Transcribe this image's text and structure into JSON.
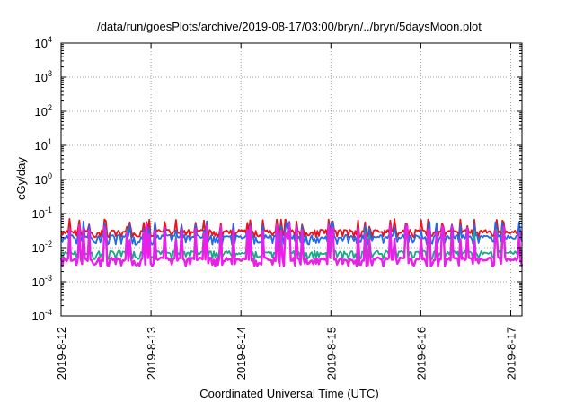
{
  "chart_data": {
    "type": "line",
    "title": "/data/run/goesPlots/archive/2019-08-17/03:00/bryn/../bryn/5daysMoon.plot",
    "ylabel": "cGy/day",
    "xlabel": "Coordinated Universal Time (UTC)",
    "yscale": "log",
    "ylim": [
      0.0001,
      10000
    ],
    "yticks": [
      {
        "base": "10",
        "exp": "4",
        "value": 10000
      },
      {
        "base": "10",
        "exp": "3",
        "value": 1000
      },
      {
        "base": "10",
        "exp": "2",
        "value": 100
      },
      {
        "base": "10",
        "exp": "1",
        "value": 10
      },
      {
        "base": "10",
        "exp": "0",
        "value": 1
      },
      {
        "base": "10",
        "exp": "-1",
        "value": 0.1
      },
      {
        "base": "10",
        "exp": "-2",
        "value": 0.01
      },
      {
        "base": "10",
        "exp": "-3",
        "value": 0.001
      },
      {
        "base": "10",
        "exp": "-4",
        "value": 0.0001
      }
    ],
    "xlim": [
      "2019-08-12 00:00",
      "2019-08-17 03:00"
    ],
    "xticks": [
      {
        "label": "2019-8-12",
        "value": "2019-08-12"
      },
      {
        "label": "2019-8-13",
        "value": "2019-08-13"
      },
      {
        "label": "2019-8-14",
        "value": "2019-08-14"
      },
      {
        "label": "2019-8-15",
        "value": "2019-08-15"
      },
      {
        "label": "2019-8-16",
        "value": "2019-08-16"
      },
      {
        "label": "2019-8-17",
        "value": "2019-08-17"
      }
    ],
    "grid": true,
    "series": [
      {
        "color": "#e8141c",
        "base": 0.03,
        "spike_low": 0.02,
        "spike_high": 0.07
      },
      {
        "color": "#1e6ae8",
        "base": 0.021,
        "spike_low": 0.012,
        "spike_high": 0.06
      },
      {
        "color": "#1aa88a",
        "base": 0.0072,
        "spike_low": 0.0045,
        "spike_high": 0.035
      },
      {
        "color": "#e820e8",
        "base": 0.0046,
        "spike_low": 0.0028,
        "spike_high": 0.05
      }
    ]
  }
}
